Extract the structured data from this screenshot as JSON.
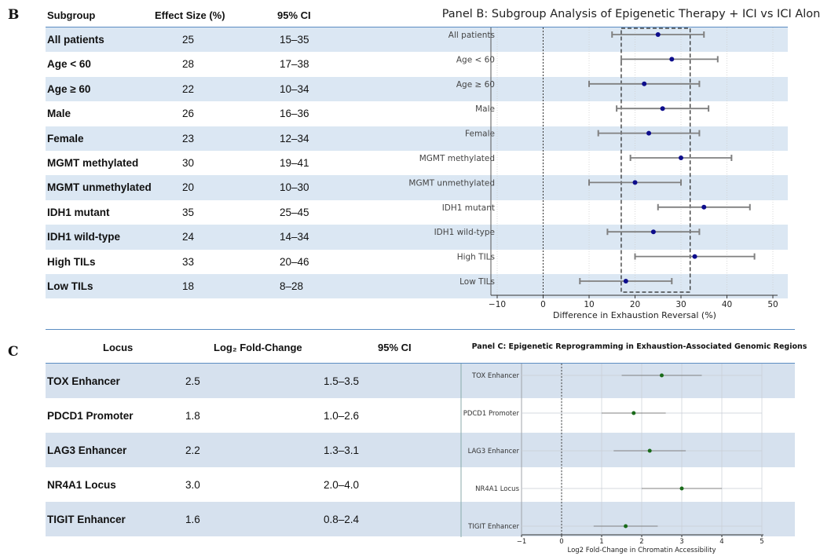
{
  "panel_b": {
    "letter": "B",
    "headers": {
      "subgroup": "Subgroup",
      "effect": "Effect Size (%)",
      "ci": "95% CI"
    },
    "rows": [
      {
        "subgroup": "All patients",
        "effect": "25",
        "ci": "15–35"
      },
      {
        "subgroup": "Age < 60",
        "effect": "28",
        "ci": "17–38"
      },
      {
        "subgroup": "Age ≥ 60",
        "effect": "22",
        "ci": "10–34"
      },
      {
        "subgroup": "Male",
        "effect": "26",
        "ci": "16–36"
      },
      {
        "subgroup": "Female",
        "effect": "23",
        "ci": "12–34"
      },
      {
        "subgroup": "MGMT methylated",
        "effect": "30",
        "ci": "19–41"
      },
      {
        "subgroup": "MGMT unmethylated",
        "effect": "20",
        "ci": "10–30"
      },
      {
        "subgroup": "IDH1 mutant",
        "effect": "35",
        "ci": "25–45"
      },
      {
        "subgroup": "IDH1 wild-type",
        "effect": "24",
        "ci": "14–34"
      },
      {
        "subgroup": "High TILs",
        "effect": "33",
        "ci": "20–46"
      },
      {
        "subgroup": "Low TILs",
        "effect": "18",
        "ci": "8–28"
      }
    ]
  },
  "panel_c": {
    "letter": "C",
    "headers": {
      "locus": "Locus",
      "fold": "Log₂ Fold-Change",
      "ci": "95% CI"
    },
    "rows": [
      {
        "locus": "TOX Enhancer",
        "fold": "2.5",
        "ci": "1.5–3.5"
      },
      {
        "locus": "PDCD1 Promoter",
        "fold": "1.8",
        "ci": "1.0–2.6"
      },
      {
        "locus": "LAG3 Enhancer",
        "fold": "2.2",
        "ci": "1.3–3.1"
      },
      {
        "locus": "NR4A1 Locus",
        "fold": "3.0",
        "ci": "2.0–4.0"
      },
      {
        "locus": "TIGIT Enhancer",
        "fold": "1.6",
        "ci": "0.8–2.4"
      }
    ]
  },
  "chart_data": [
    {
      "type": "scatter",
      "subtype": "forest",
      "title": "Panel B: Subgroup Analysis of Epigenetic Therapy + ICI vs ICI Alone",
      "xlabel": "Difference in Exhaustion Reversal (%)",
      "ylabel": "",
      "xlim": [
        -10,
        50
      ],
      "xticks": [
        "−10",
        "0",
        "10",
        "20",
        "30",
        "40",
        "50"
      ],
      "xtick_values": [
        -10,
        0,
        10,
        20,
        30,
        40,
        50
      ],
      "reference_line": 0,
      "highlight_range": [
        17,
        32
      ],
      "grid": "vertical",
      "categories": [
        "All patients",
        "Age < 60",
        "Age ≥ 60",
        "Male",
        "Female",
        "MGMT methylated",
        "MGMT unmethylated",
        "IDH1 mutant",
        "IDH1 wild-type",
        "High TILs",
        "Low TILs"
      ],
      "values": [
        25,
        28,
        22,
        26,
        23,
        30,
        20,
        35,
        24,
        33,
        18
      ],
      "ci_low": [
        15,
        17,
        10,
        16,
        12,
        19,
        10,
        25,
        14,
        20,
        8
      ],
      "ci_high": [
        35,
        38,
        34,
        36,
        34,
        41,
        30,
        45,
        34,
        46,
        28
      ],
      "point_color": "#0d0d8c",
      "line_color": "#808080"
    },
    {
      "type": "scatter",
      "subtype": "forest",
      "title": "Panel C: Epigenetic Reprogramming in Exhaustion-Associated Genomic Regions",
      "xlabel": "Log2 Fold-Change in Chromatin Accessibility",
      "ylabel": "",
      "xlim": [
        -1,
        5
      ],
      "xticks": [
        "−1",
        "0",
        "1",
        "2",
        "3",
        "4",
        "5"
      ],
      "xtick_values": [
        -1,
        0,
        1,
        2,
        3,
        4,
        5
      ],
      "reference_line": 0,
      "grid": "both",
      "categories": [
        "TOX Enhancer",
        "PDCD1 Promoter",
        "LAG3 Enhancer",
        "NR4A1 Locus",
        "TIGIT Enhancer"
      ],
      "values": [
        2.5,
        1.8,
        2.2,
        3.0,
        1.6
      ],
      "ci_low": [
        1.5,
        1.0,
        1.3,
        2.0,
        0.8
      ],
      "ci_high": [
        3.5,
        2.6,
        3.1,
        4.0,
        2.4
      ],
      "point_color": "#1a6b1a",
      "line_color": "#808080"
    }
  ]
}
